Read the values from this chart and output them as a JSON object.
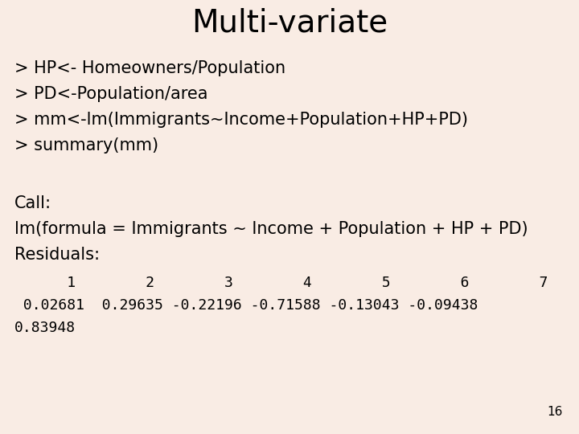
{
  "title": "Multi-variate",
  "background_color": "#f9ece4",
  "title_fontsize": 28,
  "title_color": "#000000",
  "body_fontsize": 15,
  "body_color": "#000000",
  "mono_fontsize": 13,
  "page_number": "16",
  "lines_top": [
    "> HP<- Homeowners/Population",
    "> PD<-Population/area",
    "> mm<-lm(Immigrants~Income+Population+HP+PD)",
    "> summary(mm)"
  ],
  "lines_call": [
    "Call:",
    "lm(formula = Immigrants ~ Income + Population + HP + PD)",
    "Residuals:"
  ],
  "numbers_line": "      1        2        3        4        5        6        7",
  "residuals_line1": " 0.02681  0.29635 -0.22196 -0.71588 -0.13043 -0.09438",
  "residuals_line2": "0.83948"
}
